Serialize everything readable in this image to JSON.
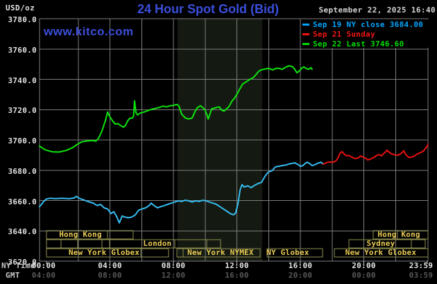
{
  "header": {
    "units": "USD/oz",
    "title": "24 Hour Spot Gold (Bid)",
    "datetime": "September 22, 2025 16:40",
    "watermark": "www.kitco.com"
  },
  "colors": {
    "background": "#000000",
    "grid": "#7e7e7e",
    "plot_border": "#7e7e7e",
    "shaded_band": "#141a11",
    "title_blue": "#3b4fdb",
    "axis_text": "#e2e2e2",
    "gmt_text": "#585858",
    "axis_name_text": "#c9c9c9",
    "tick": "#c8c8c8",
    "session_border": "#8f8f4f",
    "session_text": "#e9cb55",
    "datetime_text": "#d6d6d6"
  },
  "legend": [
    {
      "label": "Sep 19 NY close 3684.00",
      "color": "#00a6ff"
    },
    {
      "label": "Sep 21 Sunday",
      "color": "#f21414"
    },
    {
      "label": "Sep 22 Last 3746.60",
      "color": "#00dd00"
    }
  ],
  "axes": {
    "ny_time_label": "NY Time",
    "gmt_label": "GMT",
    "y_ticks": [
      "3780.0",
      "3760.0",
      "3740.0",
      "3720.0",
      "3700.0",
      "3680.0",
      "3660.0",
      "3640.0",
      "3620.0"
    ],
    "x_tick_hours": [
      0,
      4,
      8,
      12,
      16,
      20,
      24
    ],
    "x_ny": [
      "00:00",
      "04:00",
      "08:00",
      "12:00",
      "16:00",
      "20:00",
      "23:59"
    ],
    "x_gmt": [
      "04:00",
      "08:00",
      "12:00",
      "16:00",
      "20:00",
      "00:00",
      "03:59"
    ]
  },
  "sessions": {
    "rows": [
      {
        "boxes": [
          [
            0.0,
            3.85
          ],
          [
            3.85,
            5.46
          ],
          [
            20.59,
            22.12
          ],
          [
            22.12,
            24.05
          ]
        ],
        "labels": [
          {
            "text": "Hong Kong",
            "at_h": 2.14
          },
          {
            "text": "Hong Kong",
            "at_h": 22.21
          }
        ]
      },
      {
        "boxes": [
          [
            0.0,
            0.92
          ],
          [
            0.92,
            1.97
          ],
          [
            1.97,
            3.5
          ],
          [
            3.5,
            3.98
          ],
          [
            3.98,
            8.09
          ],
          [
            8.09,
            10.1
          ],
          [
            10.1,
            10.97
          ],
          [
            19.06,
            22.99
          ],
          [
            22.99,
            23.87
          ]
        ],
        "labels": [
          {
            "text": "London",
            "at_h": 6.99
          },
          {
            "text": "Sydney",
            "at_h": 21.07
          }
        ]
      },
      {
        "boxes": [
          [
            0.0,
            5.95
          ],
          [
            5.95,
            7.69
          ],
          [
            8.22,
            8.61
          ],
          [
            8.61,
            13.46
          ],
          [
            13.9,
            17.4
          ],
          [
            18.14,
            24.05
          ]
        ],
        "labels": [
          {
            "text": "New York Globex",
            "at_h": 3.63
          },
          {
            "text": "New York NYMEX",
            "at_h": 10.97
          },
          {
            "text": "NY Globex",
            "at_h": 15.21
          },
          {
            "text": "New York Globex",
            "at_h": 21.07
          }
        ]
      }
    ]
  },
  "chart_data": {
    "type": "line",
    "title": "24 Hour Spot Gold (Bid)",
    "xlabel": "NY time (hours, 00:00-23:59)",
    "ylabel": "USD/oz",
    "ylim": [
      3620,
      3780
    ],
    "y_gridline_step": 20,
    "x_gridline_step_hours": 2,
    "grid": true,
    "legend_position": "top-right",
    "shaded_region_hours": [
      8.26,
      13.6
    ],
    "series": [
      {
        "name": "Sep 22 Last 3746.60",
        "color": "#0ce60c",
        "points": [
          [
            -0.44,
            3696
          ],
          [
            -0.09,
            3693.5
          ],
          [
            0.35,
            3692.2
          ],
          [
            0.79,
            3692
          ],
          [
            1.22,
            3693
          ],
          [
            1.66,
            3695
          ],
          [
            1.97,
            3697.3
          ],
          [
            2.23,
            3698.7
          ],
          [
            2.54,
            3699.3
          ],
          [
            2.89,
            3699.6
          ],
          [
            3.1,
            3699.2
          ],
          [
            3.28,
            3701
          ],
          [
            3.5,
            3706
          ],
          [
            3.72,
            3713
          ],
          [
            3.85,
            3718.4
          ],
          [
            3.98,
            3715.5
          ],
          [
            4.15,
            3712.8
          ],
          [
            4.33,
            3710.4
          ],
          [
            4.5,
            3710.8
          ],
          [
            4.68,
            3709.4
          ],
          [
            4.85,
            3708.4
          ],
          [
            4.98,
            3709.5
          ],
          [
            5.11,
            3712.5
          ],
          [
            5.25,
            3714.2
          ],
          [
            5.42,
            3714.5
          ],
          [
            5.49,
            3716
          ],
          [
            5.55,
            3725.8
          ],
          [
            5.64,
            3718
          ],
          [
            5.73,
            3716.5
          ],
          [
            5.9,
            3717.7
          ],
          [
            6.03,
            3718
          ],
          [
            6.16,
            3718.4
          ],
          [
            6.34,
            3719.1
          ],
          [
            6.51,
            3719.8
          ],
          [
            6.69,
            3720.4
          ],
          [
            6.91,
            3720.9
          ],
          [
            7.13,
            3721.5
          ],
          [
            7.34,
            3722.3
          ],
          [
            7.56,
            3721.8
          ],
          [
            7.78,
            3722.5
          ],
          [
            8.0,
            3722.8
          ],
          [
            8.22,
            3723.4
          ],
          [
            8.35,
            3722.4
          ],
          [
            8.52,
            3717
          ],
          [
            8.74,
            3714.6
          ],
          [
            8.96,
            3713.8
          ],
          [
            9.18,
            3714.5
          ],
          [
            9.4,
            3719.5
          ],
          [
            9.53,
            3721.5
          ],
          [
            9.71,
            3722.6
          ],
          [
            9.84,
            3721.4
          ],
          [
            9.97,
            3720
          ],
          [
            10.1,
            3717
          ],
          [
            10.19,
            3713.8
          ],
          [
            10.32,
            3717.5
          ],
          [
            10.4,
            3720.4
          ],
          [
            10.54,
            3720.8
          ],
          [
            10.71,
            3721.4
          ],
          [
            10.89,
            3721.8
          ],
          [
            11.06,
            3719.5
          ],
          [
            11.19,
            3719
          ],
          [
            11.32,
            3720.2
          ],
          [
            11.5,
            3722
          ],
          [
            11.67,
            3725.4
          ],
          [
            11.85,
            3727.5
          ],
          [
            12.02,
            3730.5
          ],
          [
            12.15,
            3733
          ],
          [
            12.37,
            3737
          ],
          [
            12.68,
            3739
          ],
          [
            12.85,
            3740.2
          ],
          [
            13.03,
            3741.1
          ],
          [
            13.2,
            3743
          ],
          [
            13.38,
            3745.3
          ],
          [
            13.55,
            3746.3
          ],
          [
            13.68,
            3746.6
          ],
          [
            13.86,
            3747
          ],
          [
            13.99,
            3747.2
          ],
          [
            14.12,
            3746.8
          ],
          [
            14.25,
            3746.2
          ],
          [
            14.38,
            3746.8
          ],
          [
            14.56,
            3747.4
          ],
          [
            14.73,
            3747
          ],
          [
            14.86,
            3746.6
          ],
          [
            15.0,
            3747.5
          ],
          [
            15.13,
            3748.3
          ],
          [
            15.3,
            3748.9
          ],
          [
            15.43,
            3748.5
          ],
          [
            15.52,
            3748.2
          ],
          [
            15.65,
            3746.6
          ],
          [
            15.78,
            3744.3
          ],
          [
            15.87,
            3745
          ],
          [
            15.96,
            3745.8
          ],
          [
            16.09,
            3747.4
          ],
          [
            16.22,
            3748.2
          ],
          [
            16.39,
            3747.1
          ],
          [
            16.52,
            3746.6
          ],
          [
            16.66,
            3747.7
          ],
          [
            16.74,
            3746.6
          ]
        ]
      },
      {
        "name": "Sep 19 NY close 3684.00",
        "color": "#36bdf2",
        "points": [
          [
            -0.44,
            3656
          ],
          [
            -0.31,
            3657.5
          ],
          [
            -0.17,
            3659.5
          ],
          [
            0.0,
            3661
          ],
          [
            0.22,
            3661.5
          ],
          [
            0.57,
            3661.3
          ],
          [
            1.01,
            3661.5
          ],
          [
            1.44,
            3661.2
          ],
          [
            1.75,
            3661.7
          ],
          [
            1.88,
            3662.8
          ],
          [
            2.05,
            3661.5
          ],
          [
            2.32,
            3660.5
          ],
          [
            2.62,
            3659.3
          ],
          [
            2.93,
            3658.4
          ],
          [
            3.19,
            3656.7
          ],
          [
            3.41,
            3657.5
          ],
          [
            3.63,
            3655.2
          ],
          [
            3.85,
            3654.4
          ],
          [
            4.07,
            3651.4
          ],
          [
            4.24,
            3652.7
          ],
          [
            4.42,
            3649.5
          ],
          [
            4.59,
            3645.3
          ],
          [
            4.77,
            3649.8
          ],
          [
            4.94,
            3649.1
          ],
          [
            5.16,
            3648.6
          ],
          [
            5.38,
            3649.1
          ],
          [
            5.6,
            3650.6
          ],
          [
            5.81,
            3653.7
          ],
          [
            6.03,
            3654.4
          ],
          [
            6.25,
            3655.2
          ],
          [
            6.47,
            3656.7
          ],
          [
            6.6,
            3658.3
          ],
          [
            6.78,
            3656.7
          ],
          [
            6.99,
            3655.2
          ],
          [
            7.21,
            3656
          ],
          [
            7.43,
            3656.7
          ],
          [
            7.65,
            3657.5
          ],
          [
            7.87,
            3658.3
          ],
          [
            8.09,
            3659
          ],
          [
            8.31,
            3659.8
          ],
          [
            8.52,
            3659.4
          ],
          [
            8.74,
            3660.2
          ],
          [
            8.96,
            3659.8
          ],
          [
            9.18,
            3659
          ],
          [
            9.4,
            3659.8
          ],
          [
            9.62,
            3659.4
          ],
          [
            9.84,
            3660.2
          ],
          [
            10.05,
            3659.8
          ],
          [
            10.27,
            3659
          ],
          [
            10.49,
            3658.3
          ],
          [
            10.71,
            3657.5
          ],
          [
            10.93,
            3656
          ],
          [
            11.15,
            3654.4
          ],
          [
            11.37,
            3652.9
          ],
          [
            11.58,
            3651.4
          ],
          [
            11.8,
            3650.6
          ],
          [
            11.93,
            3652
          ],
          [
            12.07,
            3658
          ],
          [
            12.2,
            3667
          ],
          [
            12.33,
            3670.5
          ],
          [
            12.46,
            3668.9
          ],
          [
            12.68,
            3669.7
          ],
          [
            12.9,
            3668.5
          ],
          [
            13.11,
            3670
          ],
          [
            13.33,
            3671.2
          ],
          [
            13.55,
            3672
          ],
          [
            13.68,
            3674.3
          ],
          [
            13.81,
            3676.6
          ],
          [
            13.99,
            3678.9
          ],
          [
            14.21,
            3679.6
          ],
          [
            14.43,
            3682.2
          ],
          [
            14.64,
            3682.6
          ],
          [
            14.86,
            3683.1
          ],
          [
            15.08,
            3683.4
          ],
          [
            15.3,
            3684.2
          ],
          [
            15.52,
            3684.6
          ],
          [
            15.65,
            3684.9
          ],
          [
            15.87,
            3683.7
          ],
          [
            16.0,
            3682.6
          ],
          [
            16.17,
            3683.1
          ],
          [
            16.31,
            3684.6
          ],
          [
            16.44,
            3685.3
          ],
          [
            16.61,
            3684.2
          ],
          [
            16.74,
            3683.1
          ],
          [
            16.87,
            3683.4
          ],
          [
            17.09,
            3684.6
          ],
          [
            17.31,
            3685.3
          ],
          [
            17.44,
            3684.0
          ]
        ]
      },
      {
        "name": "Sep 21 Sunday",
        "color": "#ea1111",
        "points": [
          [
            17.44,
            3684.0
          ],
          [
            17.75,
            3685.4
          ],
          [
            18.05,
            3685.3
          ],
          [
            18.23,
            3686
          ],
          [
            18.36,
            3688
          ],
          [
            18.49,
            3691
          ],
          [
            18.62,
            3692.3
          ],
          [
            18.8,
            3690.3
          ],
          [
            18.93,
            3689.5
          ],
          [
            19.06,
            3689.8
          ],
          [
            19.23,
            3688.7
          ],
          [
            19.37,
            3688
          ],
          [
            19.5,
            3687.7
          ],
          [
            19.67,
            3688.3
          ],
          [
            19.8,
            3689.5
          ],
          [
            19.93,
            3688.7
          ],
          [
            20.11,
            3688
          ],
          [
            20.24,
            3686.8
          ],
          [
            20.37,
            3687.2
          ],
          [
            20.55,
            3688
          ],
          [
            20.68,
            3688.7
          ],
          [
            20.81,
            3689.8
          ],
          [
            20.98,
            3690.3
          ],
          [
            21.11,
            3689.5
          ],
          [
            21.25,
            3691
          ],
          [
            21.42,
            3692.5
          ],
          [
            21.46,
            3693.3
          ],
          [
            21.64,
            3691.5
          ],
          [
            21.77,
            3690.7
          ],
          [
            21.9,
            3690.3
          ],
          [
            22.12,
            3689.8
          ],
          [
            22.3,
            3690.7
          ],
          [
            22.43,
            3691.8
          ],
          [
            22.51,
            3692.9
          ],
          [
            22.64,
            3690.5
          ],
          [
            22.73,
            3689.5
          ],
          [
            22.86,
            3688.3
          ],
          [
            22.99,
            3688.7
          ],
          [
            23.17,
            3689.2
          ],
          [
            23.3,
            3690.3
          ],
          [
            23.43,
            3691
          ],
          [
            23.61,
            3691.8
          ],
          [
            23.74,
            3692.5
          ],
          [
            23.87,
            3694.1
          ],
          [
            24.0,
            3695.9
          ],
          [
            24.04,
            3697.1
          ]
        ]
      }
    ]
  }
}
